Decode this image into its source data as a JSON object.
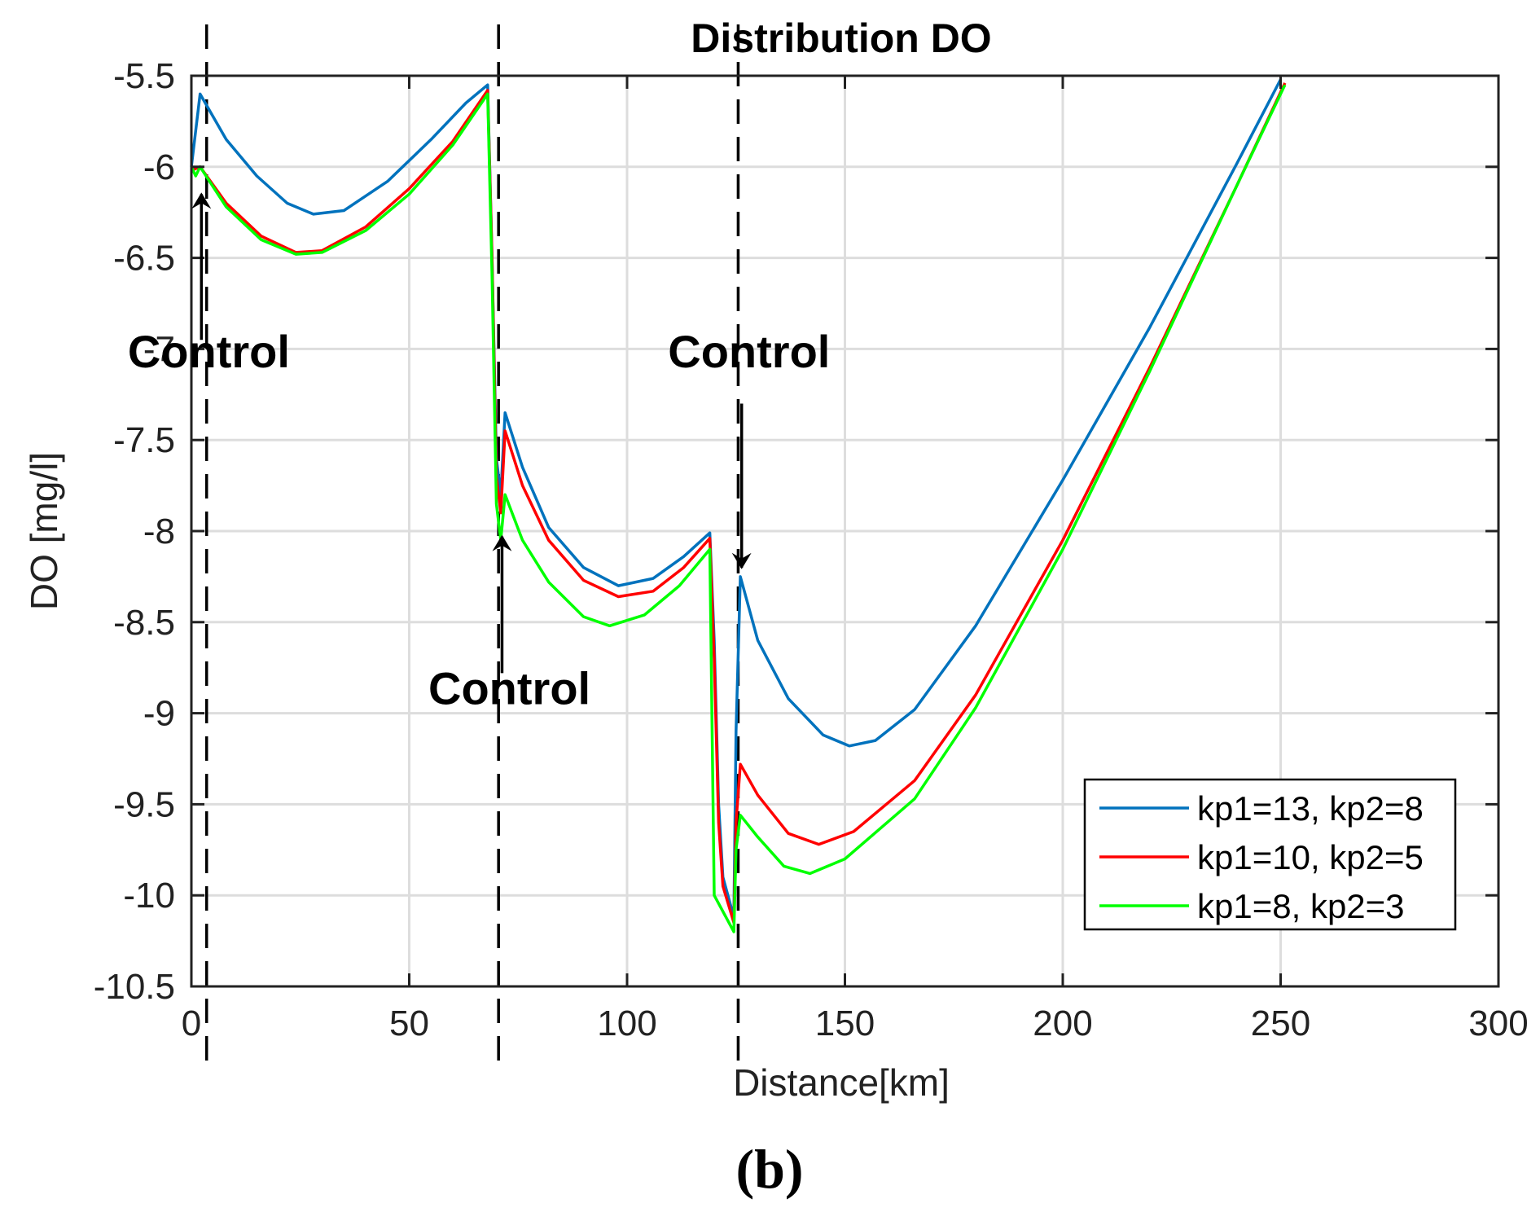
{
  "chart_data": {
    "type": "line",
    "title": "Distribution DO",
    "xlabel": "Distance[km]",
    "ylabel": "DO [mg/l]",
    "xlim": [
      0,
      300
    ],
    "ylim": [
      -10.5,
      -5.5
    ],
    "xticks": [
      0,
      50,
      100,
      150,
      200,
      250,
      300
    ],
    "yticks": [
      -5.5,
      -6,
      -6.5,
      -7,
      -7.5,
      -8,
      -8.5,
      -9,
      -9.5,
      -10,
      -10.5
    ],
    "xtick_labels": [
      "0",
      "50",
      "100",
      "150",
      "200",
      "250",
      "300"
    ],
    "ytick_labels": [
      "-5.5",
      "-6",
      "-6.5",
      "-7",
      "-7.5",
      "-8",
      "-8.5",
      "-9",
      "-9.5",
      "-10",
      "-10.5"
    ],
    "grid": true,
    "legend_position": "bottom-right",
    "series": [
      {
        "name": "kp1=13, kp2=8",
        "color": "#0072BD",
        "points": [
          [
            0,
            -6.0
          ],
          [
            2,
            -5.6
          ],
          [
            8,
            -5.85
          ],
          [
            15,
            -6.05
          ],
          [
            22,
            -6.2
          ],
          [
            28,
            -6.26
          ],
          [
            35,
            -6.24
          ],
          [
            45,
            -6.08
          ],
          [
            55,
            -5.85
          ],
          [
            63,
            -5.65
          ],
          [
            68,
            -5.55
          ],
          [
            69,
            -6.5
          ],
          [
            70,
            -7.6
          ],
          [
            71,
            -7.8
          ],
          [
            72,
            -7.35
          ],
          [
            76,
            -7.65
          ],
          [
            82,
            -7.98
          ],
          [
            90,
            -8.2
          ],
          [
            98,
            -8.3
          ],
          [
            106,
            -8.26
          ],
          [
            113,
            -8.14
          ],
          [
            119,
            -8.01
          ],
          [
            120,
            -8.6
          ],
          [
            121,
            -9.5
          ],
          [
            122,
            -9.9
          ],
          [
            124.5,
            -10.12
          ],
          [
            125,
            -9.1
          ],
          [
            126,
            -8.25
          ],
          [
            130,
            -8.6
          ],
          [
            137,
            -8.92
          ],
          [
            145,
            -9.12
          ],
          [
            151,
            -9.18
          ],
          [
            157,
            -9.15
          ],
          [
            166,
            -8.98
          ],
          [
            180,
            -8.52
          ],
          [
            200,
            -7.72
          ],
          [
            220,
            -6.88
          ],
          [
            240,
            -5.98
          ],
          [
            250,
            -5.52
          ]
        ]
      },
      {
        "name": "kp1=10, kp2=5",
        "color": "#FF0000",
        "points": [
          [
            0,
            -6.02
          ],
          [
            2,
            -6.0
          ],
          [
            8,
            -6.2
          ],
          [
            16,
            -6.38
          ],
          [
            24,
            -6.47
          ],
          [
            30,
            -6.46
          ],
          [
            40,
            -6.33
          ],
          [
            50,
            -6.12
          ],
          [
            60,
            -5.86
          ],
          [
            68,
            -5.58
          ],
          [
            69,
            -6.5
          ],
          [
            70,
            -7.7
          ],
          [
            71,
            -7.9
          ],
          [
            72,
            -7.45
          ],
          [
            76,
            -7.75
          ],
          [
            82,
            -8.05
          ],
          [
            90,
            -8.27
          ],
          [
            98,
            -8.36
          ],
          [
            106,
            -8.33
          ],
          [
            113,
            -8.2
          ],
          [
            119,
            -8.04
          ],
          [
            120,
            -8.7
          ],
          [
            121,
            -9.6
          ],
          [
            122,
            -9.95
          ],
          [
            124.5,
            -10.15
          ],
          [
            125,
            -9.6
          ],
          [
            126,
            -9.28
          ],
          [
            130,
            -9.45
          ],
          [
            137,
            -9.66
          ],
          [
            144,
            -9.72
          ],
          [
            152,
            -9.65
          ],
          [
            166,
            -9.37
          ],
          [
            180,
            -8.9
          ],
          [
            200,
            -8.05
          ],
          [
            220,
            -7.1
          ],
          [
            240,
            -6.1
          ],
          [
            251,
            -5.54
          ]
        ]
      },
      {
        "name": "kp1=8,  kp2=3",
        "color": "#00FF00",
        "points": [
          [
            0,
            -6.0
          ],
          [
            1,
            -6.05
          ],
          [
            2,
            -6.0
          ],
          [
            8,
            -6.22
          ],
          [
            16,
            -6.4
          ],
          [
            24,
            -6.48
          ],
          [
            30,
            -6.47
          ],
          [
            40,
            -6.35
          ],
          [
            50,
            -6.15
          ],
          [
            60,
            -5.88
          ],
          [
            68,
            -5.6
          ],
          [
            69,
            -6.6
          ],
          [
            70,
            -7.85
          ],
          [
            71,
            -8.05
          ],
          [
            72,
            -7.8
          ],
          [
            76,
            -8.05
          ],
          [
            82,
            -8.28
          ],
          [
            90,
            -8.47
          ],
          [
            96,
            -8.52
          ],
          [
            104,
            -8.46
          ],
          [
            112,
            -8.3
          ],
          [
            119,
            -8.1
          ],
          [
            120,
            -10.0
          ],
          [
            124.5,
            -10.2
          ],
          [
            125,
            -9.75
          ],
          [
            126,
            -9.56
          ],
          [
            130,
            -9.68
          ],
          [
            136,
            -9.84
          ],
          [
            142,
            -9.88
          ],
          [
            150,
            -9.8
          ],
          [
            166,
            -9.47
          ],
          [
            180,
            -8.97
          ],
          [
            200,
            -8.1
          ],
          [
            220,
            -7.12
          ],
          [
            240,
            -6.1
          ],
          [
            251,
            -5.55
          ]
        ]
      }
    ],
    "control_lines": [
      3.5,
      70.5,
      125.5
    ],
    "annotations": [
      {
        "text": "Control",
        "x": 4,
        "y": -7.1,
        "arrow_tip": [
          2.3,
          -6.15
        ],
        "arrow_tail": [
          2.3,
          -6.95
        ]
      },
      {
        "text": "Control",
        "x": 73,
        "y": -8.95,
        "arrow_tip": [
          71.3,
          -8.03
        ],
        "arrow_tail": [
          71.3,
          -8.78
        ]
      },
      {
        "text": "Control",
        "x": 128,
        "y": -7.1,
        "arrow_tip": [
          126.3,
          -8.2
        ],
        "arrow_tail": [
          126.3,
          -7.3
        ]
      }
    ],
    "panel_label": "(b)"
  }
}
